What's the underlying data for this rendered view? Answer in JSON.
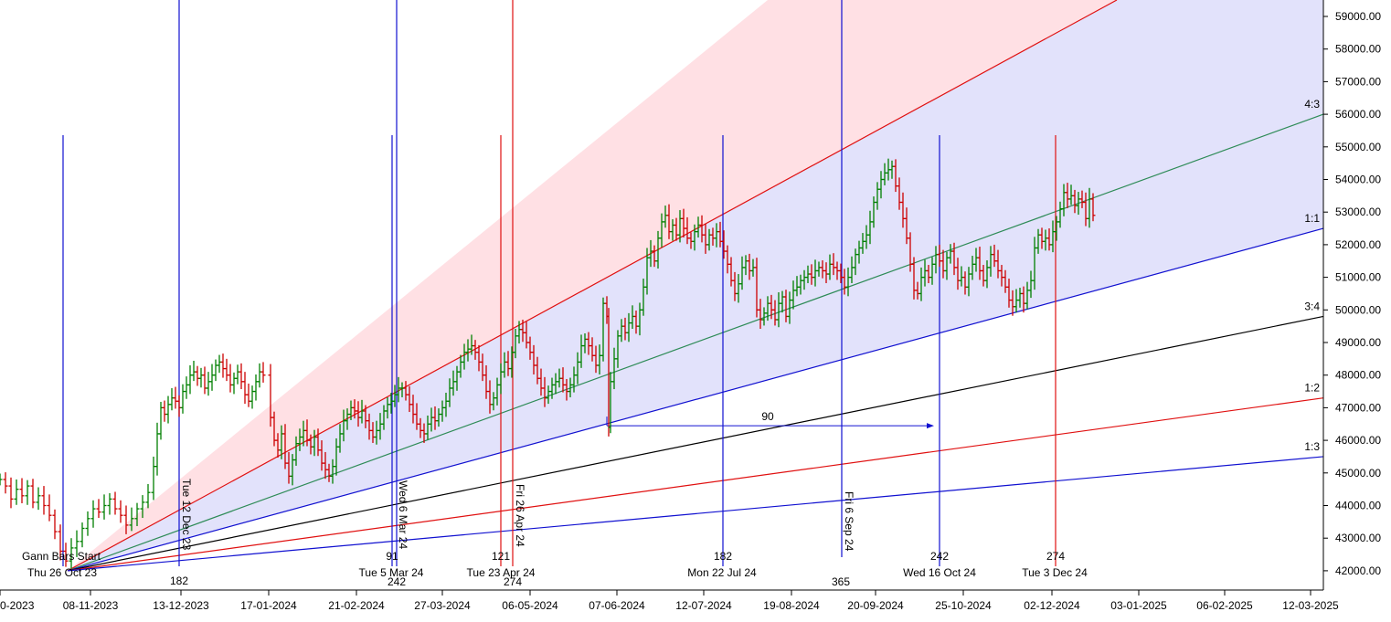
{
  "colors": {
    "background": "#ffffff",
    "fan_upper_fill": "#ffe0e4",
    "fan_lower_fill": "#e2e2fb",
    "blue_line": "#1010d0",
    "red_line": "#e01010",
    "black_line": "#000000",
    "green_line": "#2e8b57",
    "bar_up": "#008000",
    "bar_down": "#cc0000"
  },
  "chart_data": {
    "type": "ohlc_bar",
    "y_axis": {
      "ticks": [
        "59000.00",
        "58000.00",
        "57000.00",
        "56000.00",
        "55000.00",
        "54000.00",
        "53000.00",
        "52000.00",
        "51000.00",
        "50000.00",
        "49000.00",
        "48000.00",
        "47000.00",
        "46000.00",
        "45000.00",
        "44000.00",
        "43000.00",
        "42000.00"
      ],
      "range": [
        41500,
        59500
      ]
    },
    "x_axis": {
      "ticks": [
        "0-2023",
        "08-11-2023",
        "13-12-2023",
        "17-01-2024",
        "21-02-2024",
        "27-03-2024",
        "06-05-2024",
        "07-06-2024",
        "12-07-2024",
        "19-08-2024",
        "20-09-2024",
        "25-10-2024",
        "02-12-2024",
        "03-01-2025",
        "06-02-2025",
        "12-03-2025"
      ]
    },
    "gann_fan": {
      "origin_label": "Gann Bars Start",
      "origin_date": "Thu 26 Oct 23",
      "origin_price": 42000,
      "angle_labels": [
        "4:3",
        "1:1",
        "3:4",
        "1:2",
        "1:3"
      ],
      "angle_end_prices": [
        56000,
        52500,
        49800,
        47300,
        45500
      ]
    },
    "time_lines": [
      {
        "color": "blue",
        "top_label": "Tue 12 Dec 23",
        "bottom_label": "182"
      },
      {
        "color": "blue",
        "top_label": "Wed 6 Mar 24",
        "bottom_label": "242",
        "extra_label": "91",
        "date_label": "Tue 5 Mar 24"
      },
      {
        "color": "red",
        "top_label": "Fri 26 Apr 24",
        "bottom_label": "274",
        "extra_label": "121",
        "date_label": "Tue 23 Apr 24"
      },
      {
        "color": "blue",
        "top_label": "Fri 6 Sep 24",
        "bottom_label": "365"
      },
      {
        "color": "blue",
        "extra_label": "182",
        "date_label": "Mon 22 Jul 24"
      },
      {
        "color": "blue",
        "extra_label": "242",
        "date_label": "Wed 16 Oct 24"
      },
      {
        "color": "red",
        "extra_label": "274",
        "date_label": "Tue 3 Dec 24"
      }
    ],
    "measure": {
      "label": "90",
      "price": 46000
    },
    "price_path": [
      [
        0,
        44800
      ],
      [
        6,
        44600
      ],
      [
        12,
        44200
      ],
      [
        18,
        44500
      ],
      [
        24,
        44300
      ],
      [
        30,
        44600
      ],
      [
        36,
        44100
      ],
      [
        42,
        44300
      ],
      [
        48,
        44000
      ],
      [
        54,
        43700
      ],
      [
        60,
        43200
      ],
      [
        66,
        42600
      ],
      [
        72,
        42300
      ],
      [
        78,
        42700
      ],
      [
        84,
        42900
      ],
      [
        90,
        43300
      ],
      [
        96,
        43600
      ],
      [
        102,
        43900
      ],
      [
        108,
        43800
      ],
      [
        114,
        44000
      ],
      [
        120,
        44200
      ],
      [
        126,
        43900
      ],
      [
        132,
        43700
      ],
      [
        138,
        43400
      ],
      [
        144,
        43600
      ],
      [
        150,
        43900
      ],
      [
        156,
        44100
      ],
      [
        162,
        44400
      ],
      [
        168,
        45200
      ],
      [
        172,
        46200
      ],
      [
        176,
        47000
      ],
      [
        180,
        46800
      ],
      [
        184,
        47100
      ],
      [
        188,
        47300
      ],
      [
        192,
        47200
      ],
      [
        196,
        47000
      ],
      [
        200,
        47500
      ],
      [
        204,
        47700
      ],
      [
        208,
        48000
      ],
      [
        212,
        48100
      ],
      [
        216,
        47900
      ],
      [
        220,
        48000
      ],
      [
        224,
        47600
      ],
      [
        228,
        47800
      ],
      [
        232,
        48000
      ],
      [
        236,
        48300
      ],
      [
        240,
        48400
      ],
      [
        244,
        48200
      ],
      [
        248,
        48000
      ],
      [
        252,
        47700
      ],
      [
        256,
        47900
      ],
      [
        260,
        48100
      ],
      [
        264,
        47800
      ],
      [
        268,
        47400
      ],
      [
        272,
        47200
      ],
      [
        276,
        47500
      ],
      [
        280,
        47800
      ],
      [
        284,
        48100
      ],
      [
        288,
        48000
      ],
      [
        296,
        46700
      ],
      [
        300,
        46000
      ],
      [
        304,
        45700
      ],
      [
        308,
        46200
      ],
      [
        312,
        45300
      ],
      [
        316,
        44900
      ],
      [
        320,
        45400
      ],
      [
        324,
        45900
      ],
      [
        328,
        46100
      ],
      [
        332,
        46300
      ],
      [
        336,
        46000
      ],
      [
        340,
        45800
      ],
      [
        344,
        46100
      ],
      [
        348,
        45700
      ],
      [
        352,
        45300
      ],
      [
        356,
        45100
      ],
      [
        360,
        44900
      ],
      [
        364,
        45200
      ],
      [
        368,
        45800
      ],
      [
        372,
        46200
      ],
      [
        376,
        46600
      ],
      [
        380,
        46800
      ],
      [
        384,
        47000
      ],
      [
        388,
        46900
      ],
      [
        392,
        46700
      ],
      [
        396,
        46900
      ],
      [
        400,
        46600
      ],
      [
        404,
        46300
      ],
      [
        408,
        46100
      ],
      [
        412,
        46300
      ],
      [
        416,
        46500
      ],
      [
        420,
        46900
      ],
      [
        424,
        47100
      ],
      [
        428,
        47200
      ],
      [
        432,
        47400
      ],
      [
        436,
        47600
      ],
      [
        440,
        47600
      ],
      [
        444,
        47400
      ],
      [
        448,
        47100
      ],
      [
        452,
        46800
      ],
      [
        456,
        46500
      ],
      [
        460,
        46300
      ],
      [
        464,
        46200
      ],
      [
        468,
        46500
      ],
      [
        472,
        46700
      ],
      [
        476,
        46600
      ],
      [
        480,
        46800
      ],
      [
        484,
        47000
      ],
      [
        488,
        47200
      ],
      [
        492,
        47600
      ],
      [
        496,
        47800
      ],
      [
        500,
        48100
      ],
      [
        504,
        48400
      ],
      [
        508,
        48700
      ],
      [
        512,
        48800
      ],
      [
        516,
        48900
      ],
      [
        520,
        48700
      ],
      [
        524,
        48400
      ],
      [
        528,
        48000
      ],
      [
        532,
        47500
      ],
      [
        536,
        47100
      ],
      [
        540,
        47300
      ],
      [
        544,
        47700
      ],
      [
        548,
        48100
      ],
      [
        552,
        48400
      ],
      [
        556,
        48200
      ],
      [
        560,
        48700
      ],
      [
        564,
        49200
      ],
      [
        568,
        49400
      ],
      [
        572,
        49300
      ],
      [
        576,
        49000
      ],
      [
        580,
        48700
      ],
      [
        584,
        48300
      ],
      [
        588,
        47900
      ],
      [
        592,
        47600
      ],
      [
        596,
        47300
      ],
      [
        600,
        47500
      ],
      [
        604,
        47700
      ],
      [
        608,
        47800
      ],
      [
        612,
        47900
      ],
      [
        616,
        47700
      ],
      [
        620,
        47500
      ],
      [
        624,
        47700
      ],
      [
        628,
        48000
      ],
      [
        632,
        48400
      ],
      [
        636,
        48900
      ],
      [
        640,
        49100
      ],
      [
        644,
        48900
      ],
      [
        648,
        48600
      ],
      [
        652,
        48300
      ],
      [
        656,
        48600
      ],
      [
        660,
        50200
      ],
      [
        664,
        49800
      ],
      [
        666,
        46400
      ],
      [
        668,
        47800
      ],
      [
        672,
        48500
      ],
      [
        676,
        49200
      ],
      [
        680,
        49500
      ],
      [
        684,
        49300
      ],
      [
        688,
        49600
      ],
      [
        692,
        49800
      ],
      [
        696,
        49500
      ],
      [
        700,
        50000
      ],
      [
        704,
        50700
      ],
      [
        708,
        51600
      ],
      [
        712,
        51800
      ],
      [
        716,
        51500
      ],
      [
        720,
        52200
      ],
      [
        724,
        52700
      ],
      [
        728,
        52900
      ],
      [
        732,
        52400
      ],
      [
        736,
        52600
      ],
      [
        740,
        52300
      ],
      [
        744,
        52800
      ],
      [
        748,
        52500
      ],
      [
        752,
        52200
      ],
      [
        756,
        52100
      ],
      [
        760,
        52400
      ],
      [
        764,
        52600
      ],
      [
        768,
        52300
      ],
      [
        772,
        52000
      ],
      [
        776,
        52300
      ],
      [
        780,
        52200
      ],
      [
        784,
        52400
      ],
      [
        788,
        52100
      ],
      [
        792,
        51800
      ],
      [
        796,
        51400
      ],
      [
        800,
        50900
      ],
      [
        804,
        50500
      ],
      [
        808,
        50800
      ],
      [
        812,
        51300
      ],
      [
        816,
        51500
      ],
      [
        820,
        51200
      ],
      [
        824,
        51300
      ],
      [
        828,
        50000
      ],
      [
        832,
        49700
      ],
      [
        836,
        49900
      ],
      [
        840,
        50200
      ],
      [
        844,
        50000
      ],
      [
        848,
        49700
      ],
      [
        852,
        50200
      ],
      [
        856,
        50400
      ],
      [
        860,
        49800
      ],
      [
        864,
        50300
      ],
      [
        868,
        50600
      ],
      [
        872,
        50700
      ],
      [
        876,
        50900
      ],
      [
        880,
        51000
      ],
      [
        884,
        51100
      ],
      [
        888,
        51000
      ],
      [
        892,
        51200
      ],
      [
        896,
        51300
      ],
      [
        900,
        51200
      ],
      [
        904,
        51100
      ],
      [
        908,
        51400
      ],
      [
        912,
        51300
      ],
      [
        916,
        51200
      ],
      [
        920,
        51000
      ],
      [
        924,
        50700
      ],
      [
        928,
        51000
      ],
      [
        932,
        51300
      ],
      [
        936,
        51700
      ],
      [
        940,
        51900
      ],
      [
        944,
        52100
      ],
      [
        948,
        52300
      ],
      [
        952,
        52700
      ],
      [
        956,
        53300
      ],
      [
        960,
        53700
      ],
      [
        964,
        54000
      ],
      [
        968,
        54200
      ],
      [
        972,
        54300
      ],
      [
        976,
        54400
      ],
      [
        980,
        53800
      ],
      [
        984,
        53300
      ],
      [
        988,
        52800
      ],
      [
        992,
        52200
      ],
      [
        996,
        51400
      ],
      [
        1000,
        50600
      ],
      [
        1004,
        50500
      ],
      [
        1008,
        51000
      ],
      [
        1012,
        51200
      ],
      [
        1016,
        51000
      ],
      [
        1020,
        51400
      ],
      [
        1024,
        51700
      ],
      [
        1028,
        51500
      ],
      [
        1032,
        51200
      ],
      [
        1036,
        51600
      ],
      [
        1040,
        51800
      ],
      [
        1044,
        51300
      ],
      [
        1048,
        50900
      ],
      [
        1052,
        51000
      ],
      [
        1056,
        50700
      ],
      [
        1060,
        51100
      ],
      [
        1064,
        51400
      ],
      [
        1068,
        51600
      ],
      [
        1072,
        51200
      ],
      [
        1076,
        50900
      ],
      [
        1080,
        51300
      ],
      [
        1084,
        51700
      ],
      [
        1088,
        51500
      ],
      [
        1092,
        51200
      ],
      [
        1096,
        51000
      ],
      [
        1100,
        50700
      ],
      [
        1104,
        50300
      ],
      [
        1108,
        50100
      ],
      [
        1112,
        50300
      ],
      [
        1116,
        50500
      ],
      [
        1120,
        50200
      ],
      [
        1124,
        50600
      ],
      [
        1128,
        50900
      ],
      [
        1132,
        51900
      ],
      [
        1136,
        52300
      ],
      [
        1140,
        52100
      ],
      [
        1144,
        52200
      ],
      [
        1148,
        52000
      ],
      [
        1152,
        52400
      ],
      [
        1156,
        52700
      ],
      [
        1160,
        53100
      ],
      [
        1164,
        53600
      ],
      [
        1168,
        53400
      ],
      [
        1172,
        53500
      ],
      [
        1176,
        53200
      ],
      [
        1180,
        53400
      ],
      [
        1184,
        53300
      ],
      [
        1188,
        52800
      ],
      [
        1192,
        53400
      ],
      [
        1196,
        52900
      ]
    ]
  }
}
